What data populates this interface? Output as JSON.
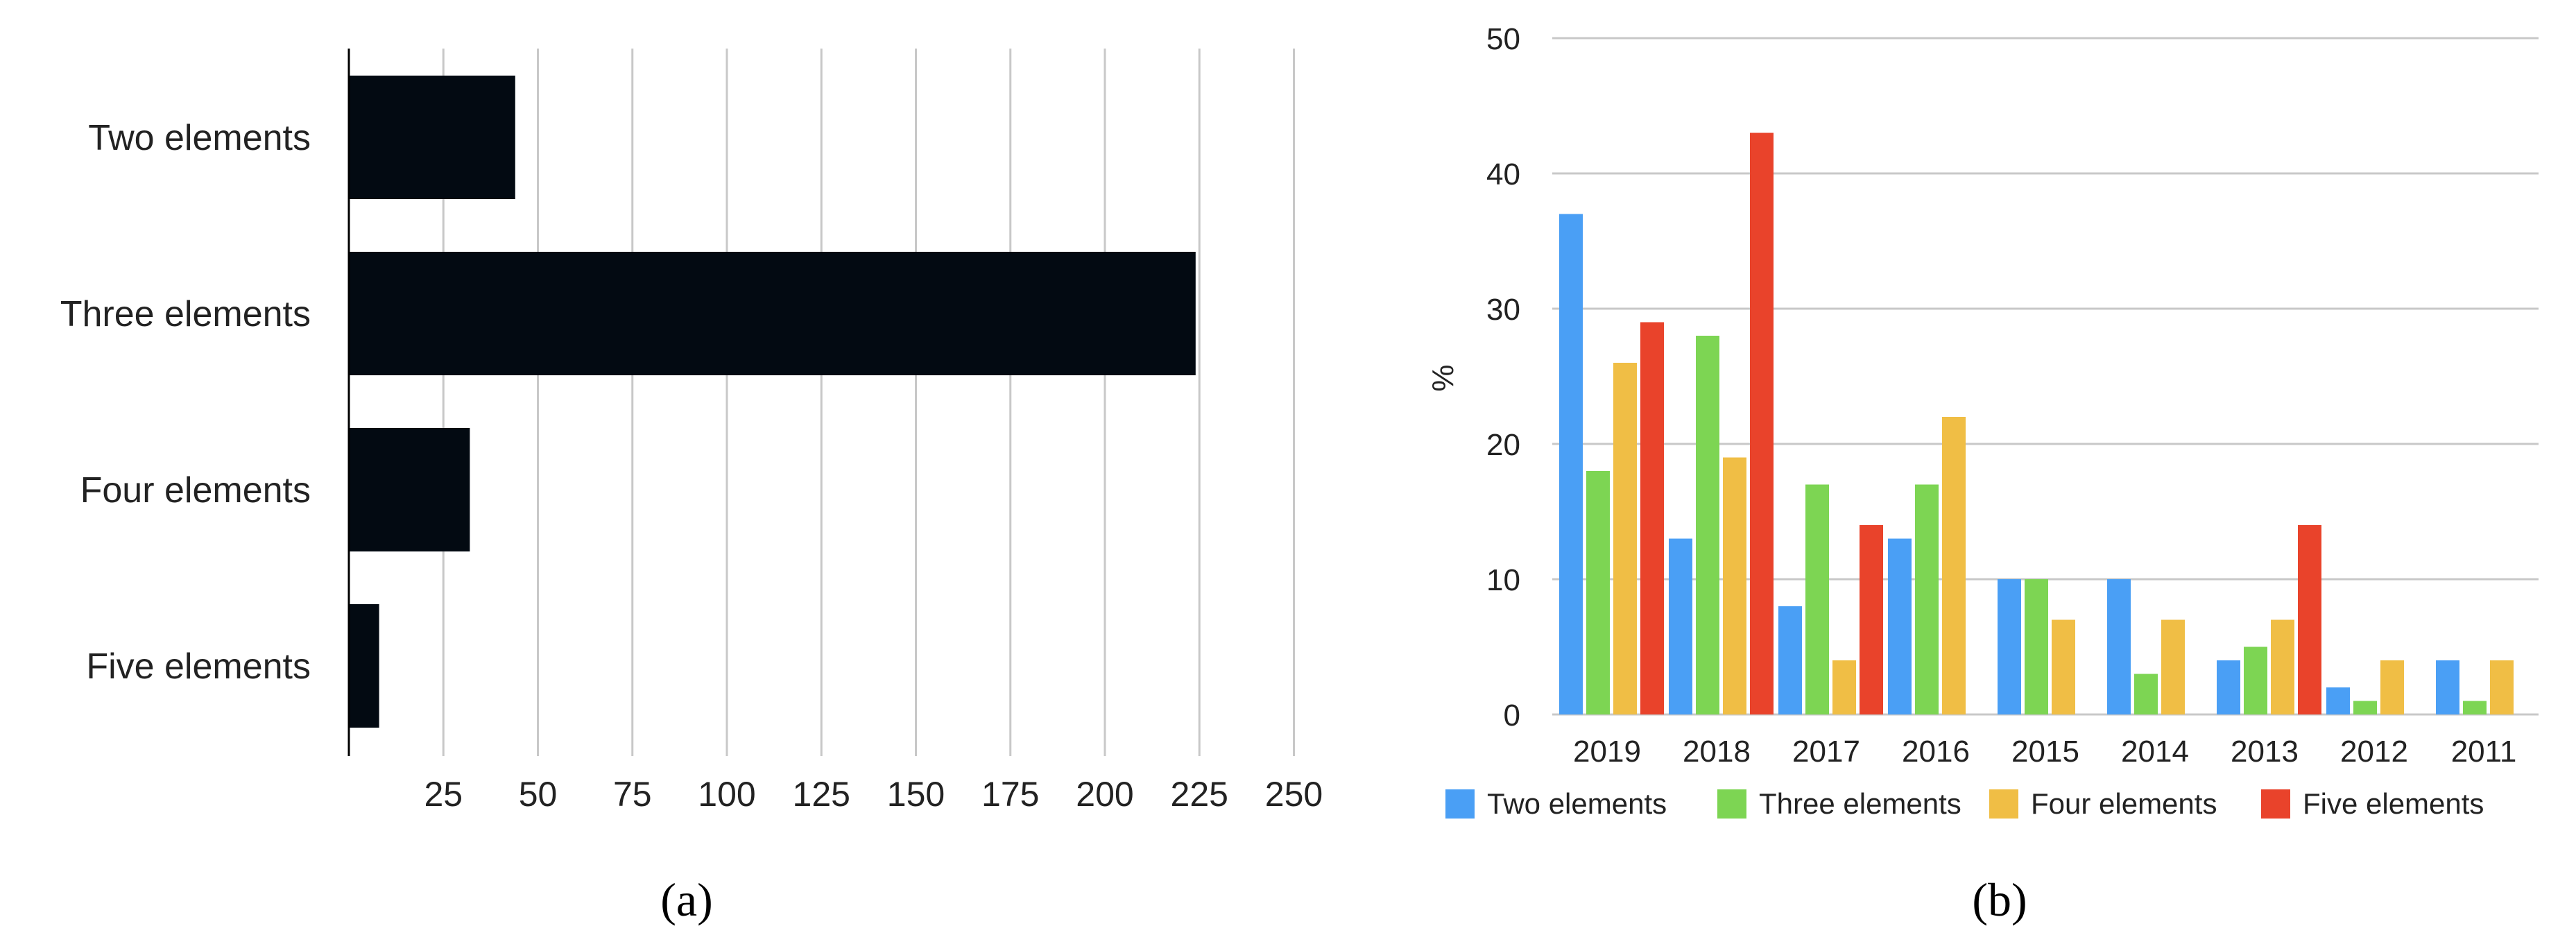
{
  "chart_data": [
    {
      "type": "bar",
      "orientation": "horizontal",
      "panel_label": "a",
      "categories": [
        "Two elements",
        "Three elements",
        "Four elements",
        "Five elements"
      ],
      "values": [
        44,
        224,
        32,
        8
      ],
      "xlim": [
        0,
        262.5
      ],
      "xticks": [
        "25",
        "50",
        "75",
        "100",
        "125",
        "150",
        "175",
        "200",
        "225",
        "250"
      ],
      "bar_color": "#030a12",
      "grid": "vertical",
      "grid_color": "#c8c8c8"
    },
    {
      "type": "bar",
      "panel_label": "b",
      "ylabel": "%",
      "ylim": [
        0,
        50
      ],
      "yticks": [
        "0",
        "10",
        "20",
        "30",
        "40",
        "50"
      ],
      "categories": [
        "2019",
        "2018",
        "2017",
        "2016",
        "2015",
        "2014",
        "2013",
        "2012",
        "2011"
      ],
      "series": [
        {
          "name": "Two elements",
          "color": "#4a9ff5",
          "values": [
            37,
            13,
            8,
            13,
            10,
            10,
            4,
            2,
            4
          ]
        },
        {
          "name": "Three elements",
          "color": "#7dd553",
          "values": [
            18,
            28,
            17,
            17,
            10,
            3,
            5,
            1,
            1
          ]
        },
        {
          "name": "Four elements",
          "color": "#f0be45",
          "values": [
            26,
            19,
            4,
            22,
            7,
            7,
            7,
            4,
            4
          ]
        },
        {
          "name": "Five elements",
          "color": "#e9432b",
          "values": [
            29,
            43,
            14,
            0,
            0,
            0,
            14,
            0,
            0
          ]
        }
      ],
      "grid": "horizontal",
      "grid_color": "#c8c8c8",
      "legend": "bottom"
    }
  ]
}
